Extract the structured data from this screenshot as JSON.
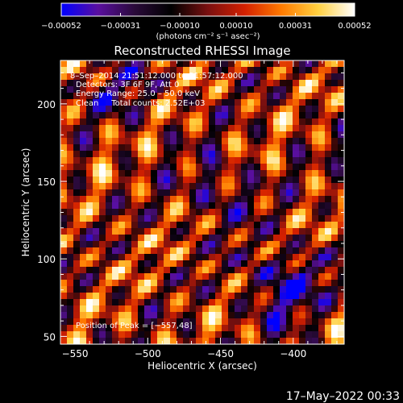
{
  "chart_data": {
    "type": "heatmap",
    "title": "Reconstructed RHESSI Image",
    "xlabel": "Heliocentric X (arcsec)",
    "ylabel": "Heliocentric Y (arcsec)",
    "xlim": [
      -560,
      -365
    ],
    "ylim": [
      45,
      228
    ],
    "xticks": [
      -550,
      -500,
      -450,
      -400
    ],
    "xtick_labels": [
      "−550",
      "−500",
      "−450",
      "−400"
    ],
    "yticks": [
      50,
      100,
      150,
      200
    ],
    "ytick_labels": [
      "50",
      "100",
      "150",
      "200"
    ],
    "colorbar": {
      "range": [
        -0.00052,
        0.00052
      ],
      "ticks": [
        -0.00052,
        -0.00031,
        -0.0001,
        0.0001,
        0.00031,
        0.00052
      ],
      "tick_labels": [
        "−0.00052",
        "−0.00031",
        "−0.00010",
        "0.00010",
        "0.00031",
        "0.00052"
      ],
      "unit_label": "(photons cm⁻² s⁻¹ asec⁻²)",
      "colors": [
        "#0000ff",
        "#5a0fa0",
        "#2a0a3a",
        "#000000",
        "#7a1010",
        "#d42000",
        "#ff7a00",
        "#ffd040",
        "#ffffff"
      ]
    },
    "annotations": [
      "8–Sep–2014 21:51:12.000 to 21:57:12.000",
      "Detectors: 3F 6F 9F, Att 0",
      "Energy Range: 25.0 – 50.0 keV",
      "Clean     Total counts: 2.52E+03"
    ],
    "peak_label": "Position of Peak = [−557,48]",
    "peak": [
      -557,
      48
    ],
    "grid": false
  },
  "footer": {
    "timestamp": "17–May–2022 00:33"
  }
}
